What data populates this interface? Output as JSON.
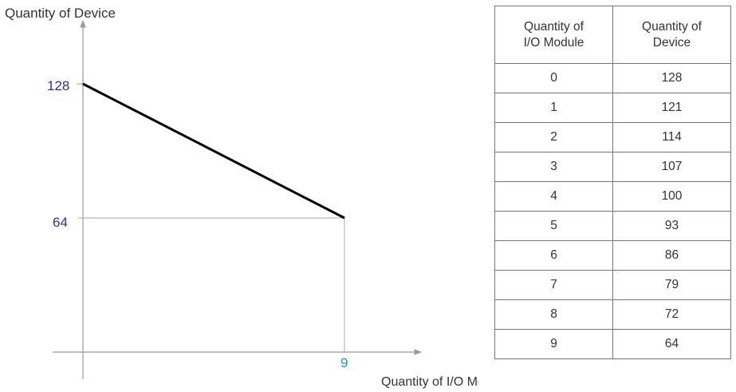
{
  "chart_data": {
    "type": "line",
    "title": "",
    "ylabel": "Quantity of Device",
    "xlabel": "Quantity of I/O Module",
    "x": [
      0,
      9
    ],
    "y": [
      128,
      64
    ],
    "xlim": [
      0,
      9
    ],
    "ylim": [
      0,
      128
    ],
    "y_ticks": [
      "128",
      "64"
    ],
    "x_ticks": [
      "9"
    ],
    "colors": {
      "line": "#000000",
      "axis": "#999999",
      "tick_y": "#2e3192",
      "tick_x": "#1a9e9e",
      "guide": "#aaaaaa"
    },
    "grid": false
  },
  "table": {
    "headers": [
      "Quantity of I/O Module",
      "Quantity of Device"
    ],
    "header_lines": [
      [
        "Quantity of",
        "I/O Module"
      ],
      [
        "Quantity of",
        "Device"
      ]
    ],
    "rows": [
      [
        "0",
        "128"
      ],
      [
        "1",
        "121"
      ],
      [
        "2",
        "114"
      ],
      [
        "3",
        "107"
      ],
      [
        "4",
        "100"
      ],
      [
        "5",
        "93"
      ],
      [
        "6",
        "86"
      ],
      [
        "7",
        "79"
      ],
      [
        "8",
        "72"
      ],
      [
        "9",
        "64"
      ]
    ]
  }
}
